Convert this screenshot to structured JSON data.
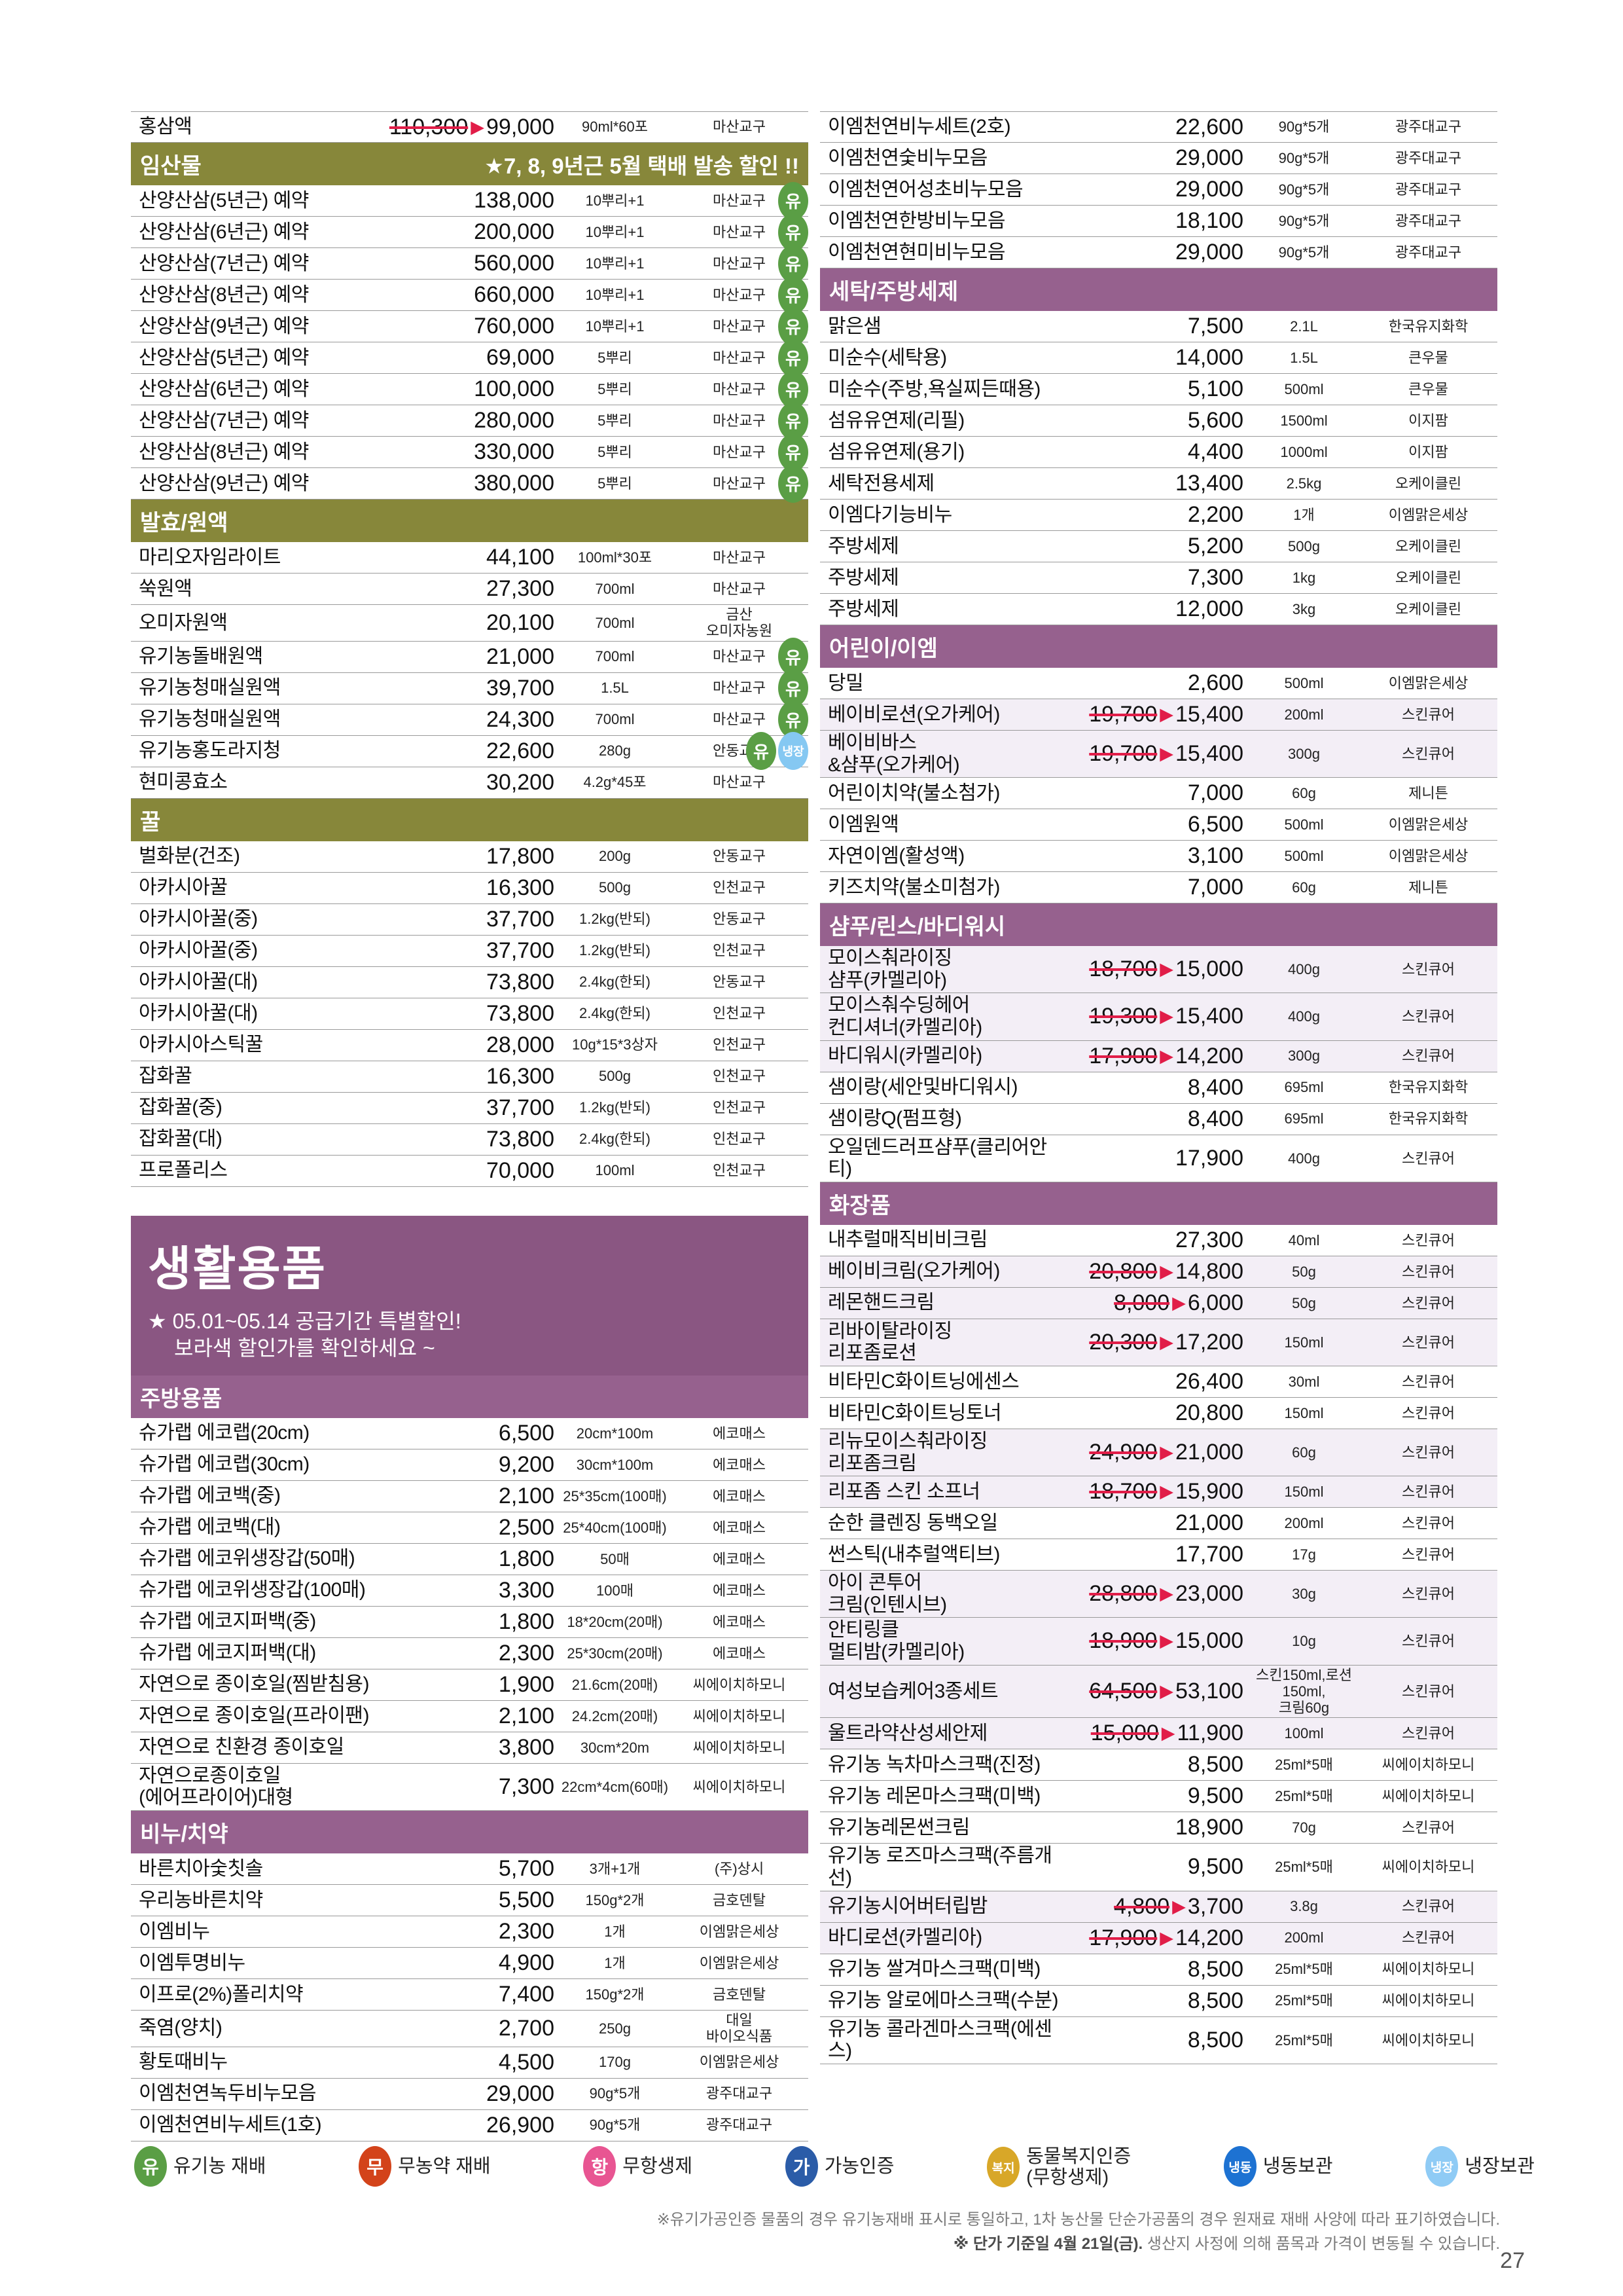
{
  "page": {
    "number": "27"
  },
  "colors": {
    "olive_header": "#87873a",
    "purple_header": "#96618e",
    "banner_purple": "#8a5682",
    "highlight_row": "#f3eef6",
    "strike_red": "#e11d48"
  },
  "icon_defs": {
    "organic": {
      "glyph": "유",
      "color": "#5a9e45"
    },
    "refrigerated": {
      "glyph": "냉장",
      "color": "#85c8f2"
    }
  },
  "columns": {
    "left": [
      {
        "kind": "row",
        "name": "홍삼액",
        "old": "110,300",
        "price": "99,000",
        "spec": "90ml*60포",
        "maker": "마산교구"
      },
      {
        "kind": "header",
        "style": "olive",
        "label": "임산물",
        "note": "★7, 8, 9년근 5월 택배 발송 할인 !!"
      },
      {
        "kind": "row",
        "name": "산양산삼(5년근) 예약",
        "price": "138,000",
        "spec": "10뿌리+1",
        "maker": "마산교구",
        "icons": [
          "organic"
        ]
      },
      {
        "kind": "row",
        "name": "산양산삼(6년근) 예약",
        "price": "200,000",
        "spec": "10뿌리+1",
        "maker": "마산교구",
        "icons": [
          "organic"
        ]
      },
      {
        "kind": "row",
        "name": "산양산삼(7년근) 예약",
        "price": "560,000",
        "spec": "10뿌리+1",
        "maker": "마산교구",
        "icons": [
          "organic"
        ]
      },
      {
        "kind": "row",
        "name": "산양산삼(8년근) 예약",
        "price": "660,000",
        "spec": "10뿌리+1",
        "maker": "마산교구",
        "icons": [
          "organic"
        ]
      },
      {
        "kind": "row",
        "name": "산양산삼(9년근) 예약",
        "price": "760,000",
        "spec": "10뿌리+1",
        "maker": "마산교구",
        "icons": [
          "organic"
        ]
      },
      {
        "kind": "row",
        "name": "산양산삼(5년근) 예약",
        "price": "69,000",
        "spec": "5뿌리",
        "maker": "마산교구",
        "icons": [
          "organic"
        ]
      },
      {
        "kind": "row",
        "name": "산양산삼(6년근) 예약",
        "price": "100,000",
        "spec": "5뿌리",
        "maker": "마산교구",
        "icons": [
          "organic"
        ]
      },
      {
        "kind": "row",
        "name": "산양산삼(7년근) 예약",
        "price": "280,000",
        "spec": "5뿌리",
        "maker": "마산교구",
        "icons": [
          "organic"
        ]
      },
      {
        "kind": "row",
        "name": "산양산삼(8년근) 예약",
        "price": "330,000",
        "spec": "5뿌리",
        "maker": "마산교구",
        "icons": [
          "organic"
        ]
      },
      {
        "kind": "row",
        "name": "산양산삼(9년근) 예약",
        "price": "380,000",
        "spec": "5뿌리",
        "maker": "마산교구",
        "icons": [
          "organic"
        ]
      },
      {
        "kind": "header",
        "style": "olive",
        "label": "발효/원액"
      },
      {
        "kind": "row",
        "name": "마리오자임라이트",
        "price": "44,100",
        "spec": "100ml*30포",
        "maker": "마산교구"
      },
      {
        "kind": "row",
        "name": "쑥원액",
        "price": "27,300",
        "spec": "700ml",
        "maker": "마산교구"
      },
      {
        "kind": "row",
        "name": "오미자원액",
        "price": "20,100",
        "spec": "700ml",
        "maker": "금산\n오미자농원"
      },
      {
        "kind": "row",
        "name": "유기농돌배원액",
        "price": "21,000",
        "spec": "700ml",
        "maker": "마산교구",
        "icons": [
          "organic"
        ]
      },
      {
        "kind": "row",
        "name": "유기농청매실원액",
        "price": "39,700",
        "spec": "1.5L",
        "maker": "마산교구",
        "icons": [
          "organic"
        ]
      },
      {
        "kind": "row",
        "name": "유기농청매실원액",
        "price": "24,300",
        "spec": "700ml",
        "maker": "마산교구",
        "icons": [
          "organic"
        ]
      },
      {
        "kind": "row",
        "name": "유기농홍도라지청",
        "price": "22,600",
        "spec": "280g",
        "maker": "안동교구",
        "icons": [
          "organic",
          "refrigerated"
        ]
      },
      {
        "kind": "row",
        "name": "현미콩효소",
        "price": "30,200",
        "spec": "4.2g*45포",
        "maker": "마산교구"
      },
      {
        "kind": "header",
        "style": "olive",
        "label": "꿀"
      },
      {
        "kind": "row",
        "name": "벌화분(건조)",
        "price": "17,800",
        "spec": "200g",
        "maker": "안동교구"
      },
      {
        "kind": "row",
        "name": "아카시아꿀",
        "price": "16,300",
        "spec": "500g",
        "maker": "인천교구"
      },
      {
        "kind": "row",
        "name": "아카시아꿀(중)",
        "price": "37,700",
        "spec": "1.2kg(반되)",
        "maker": "안동교구"
      },
      {
        "kind": "row",
        "name": "아카시아꿀(중)",
        "price": "37,700",
        "spec": "1.2kg(반되)",
        "maker": "인천교구"
      },
      {
        "kind": "row",
        "name": "아카시아꿀(대)",
        "price": "73,800",
        "spec": "2.4kg(한되)",
        "maker": "안동교구"
      },
      {
        "kind": "row",
        "name": "아카시아꿀(대)",
        "price": "73,800",
        "spec": "2.4kg(한되)",
        "maker": "인천교구"
      },
      {
        "kind": "row",
        "name": "아카시아스틱꿀",
        "price": "28,000",
        "spec": "10g*15*3상자",
        "maker": "인천교구"
      },
      {
        "kind": "row",
        "name": "잡화꿀",
        "price": "16,300",
        "spec": "500g",
        "maker": "인천교구"
      },
      {
        "kind": "row",
        "name": "잡화꿀(중)",
        "price": "37,700",
        "spec": "1.2kg(반되)",
        "maker": "인천교구"
      },
      {
        "kind": "row",
        "name": "잡화꿀(대)",
        "price": "73,800",
        "spec": "2.4kg(한되)",
        "maker": "인천교구"
      },
      {
        "kind": "row",
        "name": "프로폴리스",
        "price": "70,000",
        "spec": "100ml",
        "maker": "인천교구"
      },
      {
        "kind": "banner",
        "title": "생활용품",
        "note_lines": [
          "★ 05.01~05.14 공급기간 특별할인!",
          "보라색 할인가를 확인하세요 ~"
        ]
      },
      {
        "kind": "header",
        "style": "purple",
        "label": "주방용품"
      },
      {
        "kind": "row",
        "name": "슈가랩 에코랩(20cm)",
        "price": "6,500",
        "spec": "20cm*100m",
        "maker": "에코매스"
      },
      {
        "kind": "row",
        "name": "슈가랩 에코랩(30cm)",
        "price": "9,200",
        "spec": "30cm*100m",
        "maker": "에코매스"
      },
      {
        "kind": "row",
        "name": "슈가랩 에코백(중)",
        "price": "2,100",
        "spec": "25*35cm(100매)",
        "maker": "에코매스"
      },
      {
        "kind": "row",
        "name": "슈가랩 에코백(대)",
        "price": "2,500",
        "spec": "25*40cm(100매)",
        "maker": "에코매스"
      },
      {
        "kind": "row",
        "name": "슈가랩 에코위생장갑(50매)",
        "price": "1,800",
        "spec": "50매",
        "maker": "에코매스"
      },
      {
        "kind": "row",
        "name": "슈가랩 에코위생장갑(100매)",
        "price": "3,300",
        "spec": "100매",
        "maker": "에코매스"
      },
      {
        "kind": "row",
        "name": "슈가랩 에코지퍼백(중)",
        "price": "1,800",
        "spec": "18*20cm(20매)",
        "maker": "에코매스"
      },
      {
        "kind": "row",
        "name": "슈가랩 에코지퍼백(대)",
        "price": "2,300",
        "spec": "25*30cm(20매)",
        "maker": "에코매스"
      },
      {
        "kind": "row",
        "name": "자연으로 종이호일(찜받침용)",
        "price": "1,900",
        "spec": "21.6cm(20매)",
        "maker": "씨에이치하모니"
      },
      {
        "kind": "row",
        "name": "자연으로 종이호일(프라이팬)",
        "price": "2,100",
        "spec": "24.2cm(20매)",
        "maker": "씨에이치하모니"
      },
      {
        "kind": "row",
        "name": "자연으로 친환경 종이호일",
        "price": "3,800",
        "spec": "30cm*20m",
        "maker": "씨에이치하모니"
      },
      {
        "kind": "row",
        "name": "자연으로종이호일\n(에어프라이어)대형",
        "price": "7,300",
        "spec": "22cm*4cm(60매)",
        "maker": "씨에이치하모니"
      },
      {
        "kind": "header",
        "style": "purple",
        "label": "비누/치약"
      },
      {
        "kind": "row",
        "name": "바른치아숯칫솔",
        "price": "5,700",
        "spec": "3개+1개",
        "maker": "(주)상시"
      },
      {
        "kind": "row",
        "name": "우리농바른치약",
        "price": "5,500",
        "spec": "150g*2개",
        "maker": "금호덴탈"
      },
      {
        "kind": "row",
        "name": "이엠비누",
        "price": "2,300",
        "spec": "1개",
        "maker": "이엠맑은세상"
      },
      {
        "kind": "row",
        "name": "이엠투명비누",
        "price": "4,900",
        "spec": "1개",
        "maker": "이엠맑은세상"
      },
      {
        "kind": "row",
        "name": "이프로(2%)폴리치약",
        "price": "7,400",
        "spec": "150g*2개",
        "maker": "금호덴탈"
      },
      {
        "kind": "row",
        "name": "죽염(양치)",
        "price": "2,700",
        "spec": "250g",
        "maker": "대일\n바이오식품"
      },
      {
        "kind": "row",
        "name": "황토때비누",
        "price": "4,500",
        "spec": "170g",
        "maker": "이엠맑은세상"
      },
      {
        "kind": "row",
        "name": "이엠천연녹두비누모음",
        "price": "29,000",
        "spec": "90g*5개",
        "maker": "광주대교구"
      },
      {
        "kind": "row",
        "name": "이엠천연비누세트(1호)",
        "price": "26,900",
        "spec": "90g*5개",
        "maker": "광주대교구"
      }
    ],
    "right": [
      {
        "kind": "row",
        "name": "이엠천연비누세트(2호)",
        "price": "22,600",
        "spec": "90g*5개",
        "maker": "광주대교구"
      },
      {
        "kind": "row",
        "name": "이엠천연숯비누모음",
        "price": "29,000",
        "spec": "90g*5개",
        "maker": "광주대교구"
      },
      {
        "kind": "row",
        "name": "이엠천연어성초비누모음",
        "price": "29,000",
        "spec": "90g*5개",
        "maker": "광주대교구"
      },
      {
        "kind": "row",
        "name": "이엠천연한방비누모음",
        "price": "18,100",
        "spec": "90g*5개",
        "maker": "광주대교구"
      },
      {
        "kind": "row",
        "name": "이엠천연현미비누모음",
        "price": "29,000",
        "spec": "90g*5개",
        "maker": "광주대교구"
      },
      {
        "kind": "header",
        "style": "purple",
        "label": "세탁/주방세제"
      },
      {
        "kind": "row",
        "name": "맑은샘",
        "price": "7,500",
        "spec": "2.1L",
        "maker": "한국유지화학"
      },
      {
        "kind": "row",
        "name": "미순수(세탁용)",
        "price": "14,000",
        "spec": "1.5L",
        "maker": "큰우물"
      },
      {
        "kind": "row",
        "name": "미순수(주방,욕실찌든때용)",
        "price": "5,100",
        "spec": "500ml",
        "maker": "큰우물"
      },
      {
        "kind": "row",
        "name": "섬유유연제(리필)",
        "price": "5,600",
        "spec": "1500ml",
        "maker": "이지팜"
      },
      {
        "kind": "row",
        "name": "섬유유연제(용기)",
        "price": "4,400",
        "spec": "1000ml",
        "maker": "이지팜"
      },
      {
        "kind": "row",
        "name": "세탁전용세제",
        "price": "13,400",
        "spec": "2.5kg",
        "maker": "오케이클린"
      },
      {
        "kind": "row",
        "name": "이엠다기능비누",
        "price": "2,200",
        "spec": "1개",
        "maker": "이엠맑은세상"
      },
      {
        "kind": "row",
        "name": "주방세제",
        "price": "5,200",
        "spec": "500g",
        "maker": "오케이클린"
      },
      {
        "kind": "row",
        "name": "주방세제",
        "price": "7,300",
        "spec": "1kg",
        "maker": "오케이클린"
      },
      {
        "kind": "row",
        "name": "주방세제",
        "price": "12,000",
        "spec": "3kg",
        "maker": "오케이클린"
      },
      {
        "kind": "header",
        "style": "purple",
        "label": "어린이/이엠"
      },
      {
        "kind": "row",
        "name": "당밀",
        "price": "2,600",
        "spec": "500ml",
        "maker": "이엠맑은세상"
      },
      {
        "kind": "row",
        "name": "베이비로션(오가케어)",
        "old": "19,700",
        "price": "15,400",
        "spec": "200ml",
        "maker": "스킨큐어",
        "hl": true
      },
      {
        "kind": "row",
        "name": "베이비바스\n&샴푸(오가케어)",
        "old": "19,700",
        "price": "15,400",
        "spec": "300g",
        "maker": "스킨큐어",
        "hl": true
      },
      {
        "kind": "row",
        "name": "어린이치약(불소첨가)",
        "price": "7,000",
        "spec": "60g",
        "maker": "제니튼"
      },
      {
        "kind": "row",
        "name": "이엠원액",
        "price": "6,500",
        "spec": "500ml",
        "maker": "이엠맑은세상"
      },
      {
        "kind": "row",
        "name": "자연이엠(활성액)",
        "price": "3,100",
        "spec": "500ml",
        "maker": "이엠맑은세상"
      },
      {
        "kind": "row",
        "name": "키즈치약(불소미첨가)",
        "price": "7,000",
        "spec": "60g",
        "maker": "제니튼"
      },
      {
        "kind": "header",
        "style": "purple",
        "label": "샴푸/린스/바디워시"
      },
      {
        "kind": "row",
        "name": "모이스춰라이징\n샴푸(카멜리아)",
        "old": "18,700",
        "price": "15,000",
        "spec": "400g",
        "maker": "스킨큐어",
        "hl": true
      },
      {
        "kind": "row",
        "name": "모이스춰수딩헤어\n컨디셔너(카멜리아)",
        "old": "19,300",
        "price": "15,400",
        "spec": "400g",
        "maker": "스킨큐어",
        "hl": true
      },
      {
        "kind": "row",
        "name": "바디워시(카멜리아)",
        "old": "17,900",
        "price": "14,200",
        "spec": "300g",
        "maker": "스킨큐어",
        "hl": true
      },
      {
        "kind": "row",
        "name": "샘이랑(세안및바디워시)",
        "price": "8,400",
        "spec": "695ml",
        "maker": "한국유지화학"
      },
      {
        "kind": "row",
        "name": "샘이랑Q(펌프형)",
        "price": "8,400",
        "spec": "695ml",
        "maker": "한국유지화학"
      },
      {
        "kind": "row",
        "name": "오일덴드러프샴푸(클리어안티)",
        "price": "17,900",
        "spec": "400g",
        "maker": "스킨큐어"
      },
      {
        "kind": "header",
        "style": "purple",
        "label": "화장품"
      },
      {
        "kind": "row",
        "name": "내추럴매직비비크림",
        "price": "27,300",
        "spec": "40ml",
        "maker": "스킨큐어"
      },
      {
        "kind": "row",
        "name": "베이비크림(오가케어)",
        "old": "20,800",
        "price": "14,800",
        "spec": "50g",
        "maker": "스킨큐어",
        "hl": true
      },
      {
        "kind": "row",
        "name": "레몬핸드크림",
        "old": "8,000",
        "price": "6,000",
        "spec": "50g",
        "maker": "스킨큐어",
        "hl": true
      },
      {
        "kind": "row",
        "name": "리바이탈라이징\n리포좀로션",
        "old": "20,300",
        "price": "17,200",
        "spec": "150ml",
        "maker": "스킨큐어",
        "hl": true
      },
      {
        "kind": "row",
        "name": "비타민C화이트닝에센스",
        "price": "26,400",
        "spec": "30ml",
        "maker": "스킨큐어"
      },
      {
        "kind": "row",
        "name": "비타민C화이트닝토너",
        "price": "20,800",
        "spec": "150ml",
        "maker": "스킨큐어"
      },
      {
        "kind": "row",
        "name": "리뉴모이스춰라이징\n리포좀크림",
        "old": "24,900",
        "price": "21,000",
        "spec": "60g",
        "maker": "스킨큐어",
        "hl": true
      },
      {
        "kind": "row",
        "name": "리포좀 스킨 소프너",
        "old": "18,700",
        "price": "15,900",
        "spec": "150ml",
        "maker": "스킨큐어",
        "hl": true
      },
      {
        "kind": "row",
        "name": "순한 클렌징 동백오일",
        "price": "21,000",
        "spec": "200ml",
        "maker": "스킨큐어"
      },
      {
        "kind": "row",
        "name": "썬스틱(내추럴액티브)",
        "price": "17,700",
        "spec": "17g",
        "maker": "스킨큐어"
      },
      {
        "kind": "row",
        "name": "아이 콘투어\n크림(인텐시브)",
        "old": "28,800",
        "price": "23,000",
        "spec": "30g",
        "maker": "스킨큐어",
        "hl": true
      },
      {
        "kind": "row",
        "name": "안티링클\n멀티밤(카멜리아)",
        "old": "18,900",
        "price": "15,000",
        "spec": "10g",
        "maker": "스킨큐어",
        "hl": true
      },
      {
        "kind": "row",
        "name": "여성보습케어3종세트",
        "old": "64,500",
        "price": "53,100",
        "spec": "스킨150ml,로션150ml,\n크림60g",
        "maker": "스킨큐어",
        "hl": true
      },
      {
        "kind": "row",
        "name": "울트라약산성세안제",
        "old": "15,000",
        "price": "11,900",
        "spec": "100ml",
        "maker": "스킨큐어",
        "hl": true
      },
      {
        "kind": "row",
        "name": "유기농 녹차마스크팩(진정)",
        "price": "8,500",
        "spec": "25ml*5매",
        "maker": "씨에이치하모니"
      },
      {
        "kind": "row",
        "name": "유기농 레몬마스크팩(미백)",
        "price": "9,500",
        "spec": "25ml*5매",
        "maker": "씨에이치하모니"
      },
      {
        "kind": "row",
        "name": "유기농레몬썬크림",
        "price": "18,900",
        "spec": "70g",
        "maker": "스킨큐어"
      },
      {
        "kind": "row",
        "name": "유기농 로즈마스크팩(주름개선)",
        "price": "9,500",
        "spec": "25ml*5매",
        "maker": "씨에이치하모니"
      },
      {
        "kind": "row",
        "name": "유기농시어버터립밤",
        "old": "4,800",
        "price": "3,700",
        "spec": "3.8g",
        "maker": "스킨큐어",
        "hl": true
      },
      {
        "kind": "row",
        "name": "바디로션(카멜리아)",
        "old": "17,900",
        "price": "14,200",
        "spec": "200ml",
        "maker": "스킨큐어",
        "hl": true
      },
      {
        "kind": "row",
        "name": "유기농 쌀겨마스크팩(미백)",
        "price": "8,500",
        "spec": "25ml*5매",
        "maker": "씨에이치하모니"
      },
      {
        "kind": "row",
        "name": "유기농 알로에마스크팩(수분)",
        "price": "8,500",
        "spec": "25ml*5매",
        "maker": "씨에이치하모니"
      },
      {
        "kind": "row",
        "name": "유기농 콜라겐마스크팩(에센스)",
        "price": "8,500",
        "spec": "25ml*5매",
        "maker": "씨에이치하모니"
      }
    ]
  },
  "legend": [
    {
      "id": "organic",
      "glyph": "유",
      "color": "#5a9e45",
      "label": "유기농 재배"
    },
    {
      "id": "no-pesticide",
      "glyph": "무",
      "color": "#d3431a",
      "label": "무농약 재배"
    },
    {
      "id": "no-antibiotic",
      "glyph": "항",
      "color": "#e85592",
      "label": "무항생제"
    },
    {
      "id": "ga-cert",
      "glyph": "가",
      "color": "#2b5ca8",
      "label": "가농인증"
    },
    {
      "id": "animal-welfare",
      "glyph": "복지",
      "color": "#d8a728",
      "label": "동물복지인증\n(무항생제)"
    },
    {
      "id": "frozen",
      "glyph": "냉동",
      "color": "#1d72d2",
      "label": "냉동보관"
    },
    {
      "id": "refrigerated",
      "glyph": "냉장",
      "color": "#8fcbf5",
      "label": "냉장보관"
    }
  ],
  "footnotes": {
    "line1": "※유기가공인증 물품의 경우 유기농재배 표시로 통일하고, 1차 농산물 단순가공품의 경우 원재료 재배 사양에 따라 표기하였습니다.",
    "line2_bold": "※ 단가 기준일 4월 21일(금).",
    "line2_rest": " 생산지 사정에 의해 품목과 가격이 변동될 수 있습니다."
  }
}
